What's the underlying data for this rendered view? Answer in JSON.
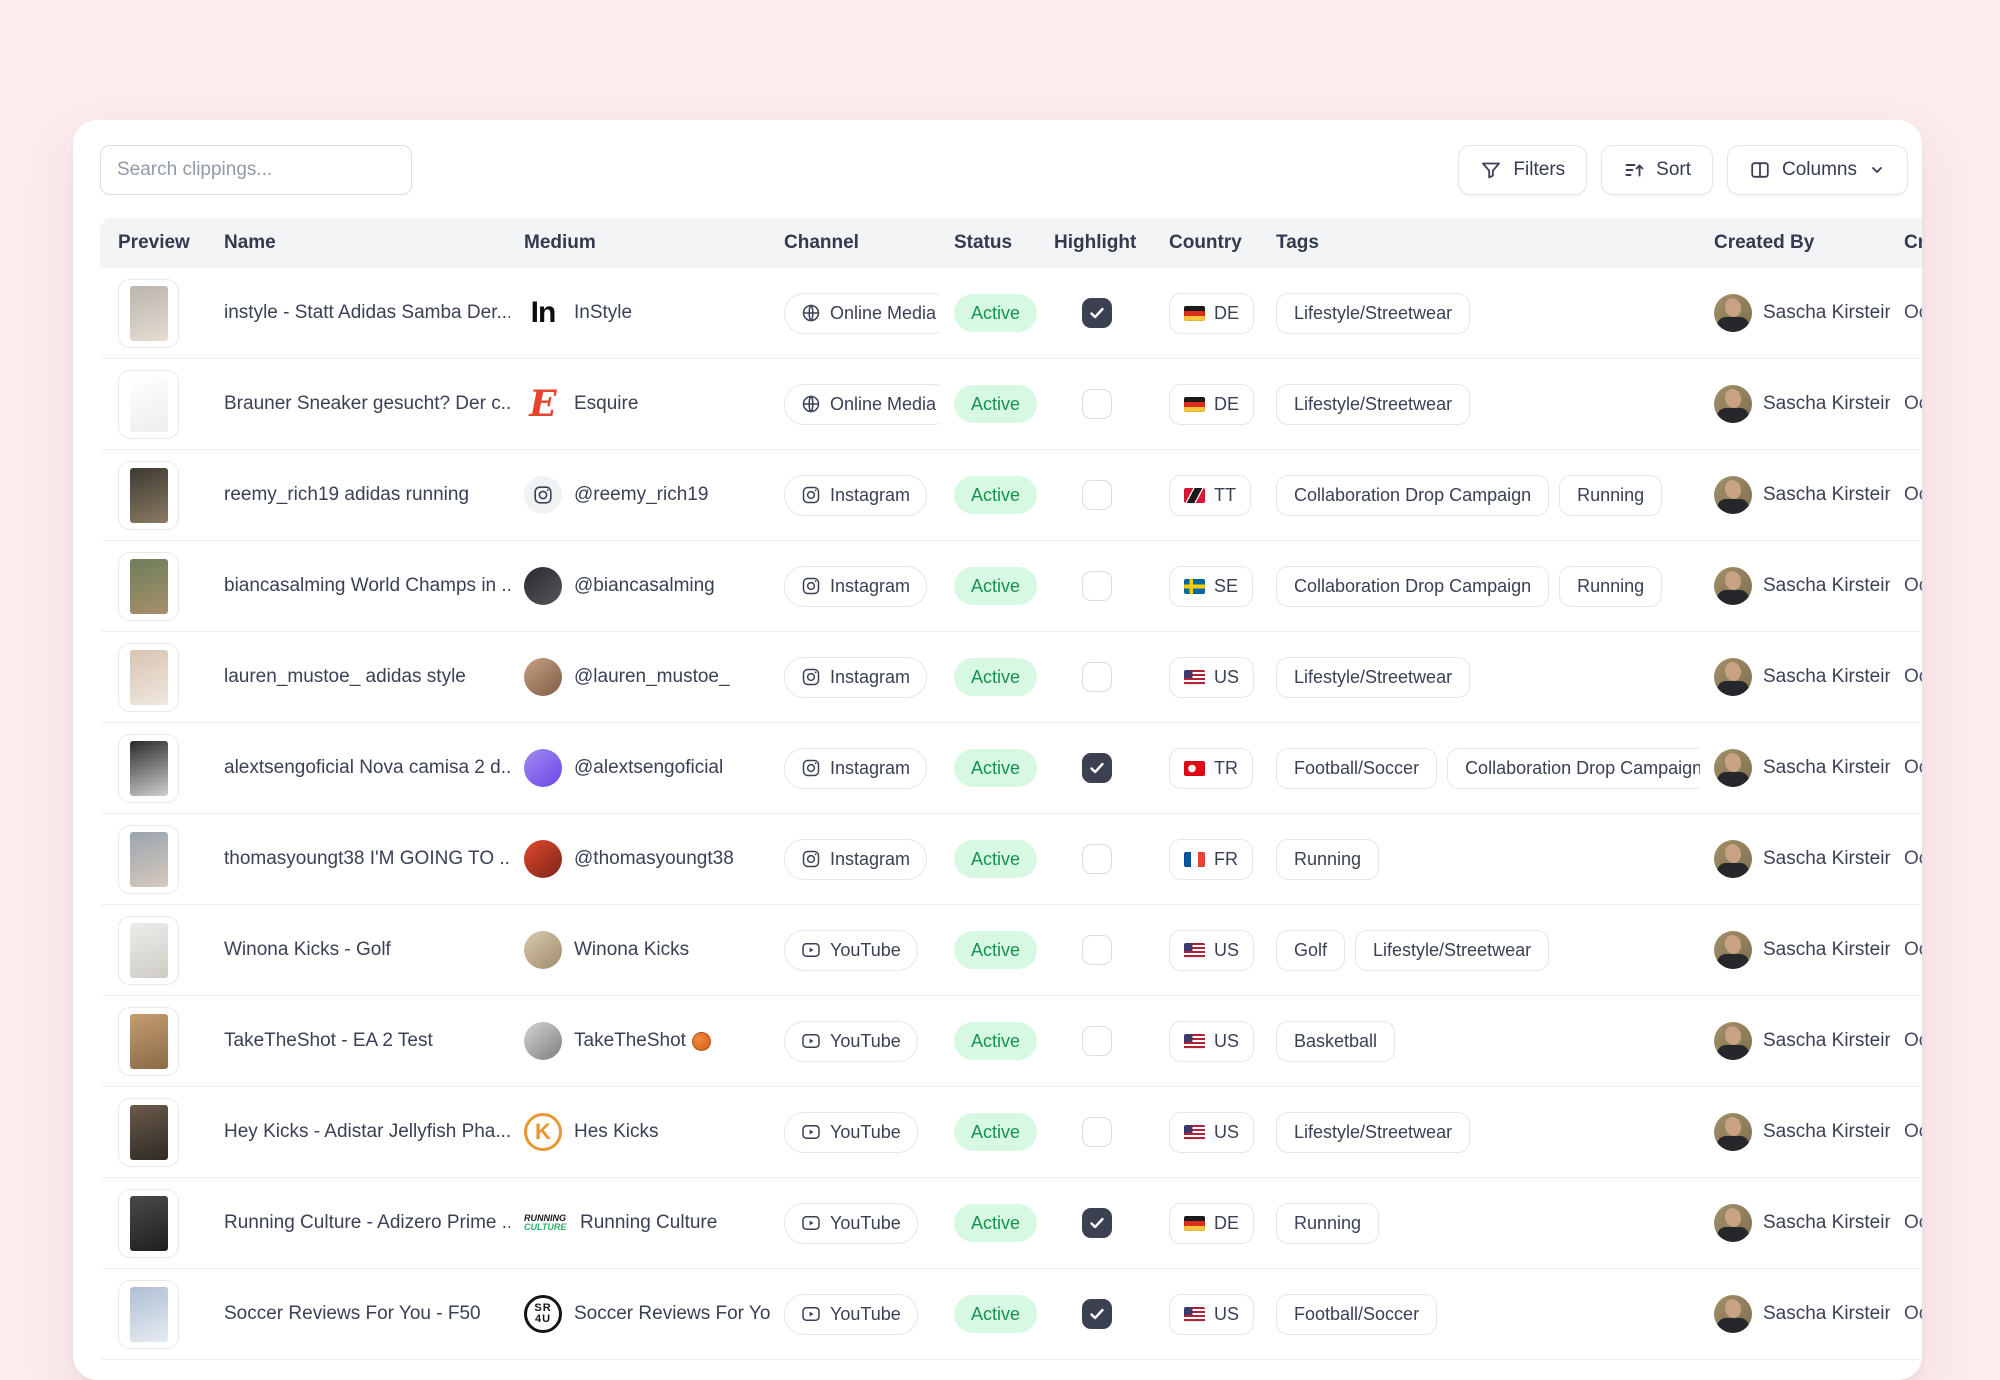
{
  "toolbar": {
    "search_placeholder": "Search clippings...",
    "filters_label": "Filters",
    "sort_label": "Sort",
    "columns_label": "Columns"
  },
  "colors": {
    "background": "#fbecee",
    "status_active_bg": "#d7f8e2",
    "status_active_text": "#15934e",
    "checkbox_checked": "#3c4152"
  },
  "table": {
    "columns": [
      {
        "key": "preview",
        "label": "Preview"
      },
      {
        "key": "name",
        "label": "Name"
      },
      {
        "key": "medium",
        "label": "Medium"
      },
      {
        "key": "channel",
        "label": "Channel"
      },
      {
        "key": "status",
        "label": "Status"
      },
      {
        "key": "highlight",
        "label": "Highlight"
      },
      {
        "key": "country",
        "label": "Country"
      },
      {
        "key": "tags",
        "label": "Tags"
      },
      {
        "key": "createdby",
        "label": "Created By"
      },
      {
        "key": "createdat",
        "label": "Cr"
      }
    ],
    "rows": [
      {
        "name": "instyle - Statt Adidas Samba Der...",
        "medium": {
          "name": "InStyle",
          "avatar": {
            "kind": "text",
            "text": "In",
            "color": "#0c0d10"
          }
        },
        "channel": {
          "label": "Online Media",
          "icon": "globe-icon"
        },
        "status": "Active",
        "highlight": true,
        "country": {
          "code": "DE"
        },
        "tags": [
          "Lifestyle/Streetwear"
        ],
        "created_by": "Sascha Kirstein",
        "created_at": "Oct",
        "thumb": [
          "#b9b4ad",
          "#e6ddd1"
        ]
      },
      {
        "name": "Brauner Sneaker gesucht? Der c...",
        "medium": {
          "name": "Esquire",
          "avatar": {
            "kind": "serif",
            "text": "E",
            "color": "#e8432e"
          }
        },
        "channel": {
          "label": "Online Media",
          "icon": "globe-icon"
        },
        "status": "Active",
        "highlight": false,
        "country": {
          "code": "DE"
        },
        "tags": [
          "Lifestyle/Streetwear"
        ],
        "created_by": "Sascha Kirstein",
        "created_at": "Oct",
        "thumb": [
          "#ffffff",
          "#ededeb"
        ]
      },
      {
        "name": "reemy_rich19 adidas running",
        "medium": {
          "name": "@reemy_rich19",
          "avatar": {
            "kind": "ig"
          }
        },
        "channel": {
          "label": "Instagram",
          "icon": "instagram-icon"
        },
        "status": "Active",
        "highlight": false,
        "country": {
          "code": "TT"
        },
        "tags": [
          "Collaboration Drop Campaign",
          "Running"
        ],
        "created_by": "Sascha Kirstein",
        "created_at": "Oct",
        "thumb": [
          "#3d3a33",
          "#8a7a62"
        ]
      },
      {
        "name": "biancasalming World Champs in ...",
        "medium": {
          "name": "@biancasalming",
          "avatar": {
            "kind": "photo",
            "colors": [
              "#2a2a2e",
              "#55555c"
            ]
          }
        },
        "channel": {
          "label": "Instagram",
          "icon": "instagram-icon"
        },
        "status": "Active",
        "highlight": false,
        "country": {
          "code": "SE"
        },
        "tags": [
          "Collaboration Drop Campaign",
          "Running"
        ],
        "created_by": "Sascha Kirstein",
        "created_at": "Oct",
        "thumb": [
          "#6c7f5a",
          "#a98f6b"
        ]
      },
      {
        "name": "lauren_mustoe_ adidas style",
        "medium": {
          "name": "@lauren_mustoe_",
          "avatar": {
            "kind": "photo",
            "colors": [
              "#c9a184",
              "#7d5b44"
            ]
          }
        },
        "channel": {
          "label": "Instagram",
          "icon": "instagram-icon"
        },
        "status": "Active",
        "highlight": false,
        "country": {
          "code": "US"
        },
        "tags": [
          "Lifestyle/Streetwear"
        ],
        "created_by": "Sascha Kirstein",
        "created_at": "Oct",
        "thumb": [
          "#d8c4b2",
          "#efe7de"
        ]
      },
      {
        "name": "alextsengoficial Nova camisa 2 d...",
        "medium": {
          "name": "@alextsengoficial",
          "avatar": {
            "kind": "photo",
            "colors": [
              "#a18bf0",
              "#6b46e5"
            ]
          }
        },
        "channel": {
          "label": "Instagram",
          "icon": "instagram-icon"
        },
        "status": "Active",
        "highlight": true,
        "country": {
          "code": "TR"
        },
        "tags": [
          "Football/Soccer",
          "Collaboration Drop Campaign"
        ],
        "created_by": "Sascha Kirstein",
        "created_at": "Oct",
        "thumb": [
          "#2b2b2e",
          "#cfcfd2"
        ]
      },
      {
        "name": "thomasyoungt38 I'M GOING TO ...",
        "medium": {
          "name": "@thomasyoungt38",
          "avatar": {
            "kind": "photo",
            "colors": [
              "#e0492f",
              "#7e2417"
            ]
          }
        },
        "channel": {
          "label": "Instagram",
          "icon": "instagram-icon"
        },
        "status": "Active",
        "highlight": false,
        "country": {
          "code": "FR"
        },
        "tags": [
          "Running"
        ],
        "created_by": "Sascha Kirstein",
        "created_at": "Oct",
        "thumb": [
          "#9aa4b0",
          "#d6cabc"
        ]
      },
      {
        "name": "Winona Kicks - Golf",
        "medium": {
          "name": "Winona Kicks",
          "avatar": {
            "kind": "photo",
            "colors": [
              "#d9cab0",
              "#a08a6a"
            ]
          }
        },
        "channel": {
          "label": "YouTube",
          "icon": "youtube-icon"
        },
        "status": "Active",
        "highlight": false,
        "country": {
          "code": "US"
        },
        "tags": [
          "Golf",
          "Lifestyle/Streetwear"
        ],
        "created_by": "Sascha Kirstein",
        "created_at": "Oct",
        "thumb": [
          "#ececea",
          "#cfccc6"
        ]
      },
      {
        "name": "TakeTheShot - EA 2 Test",
        "medium": {
          "name": "TakeTheShot",
          "suffix_icon": "basketball-icon",
          "avatar": {
            "kind": "photo",
            "colors": [
              "#d4d4d4",
              "#7e7e7e"
            ]
          }
        },
        "channel": {
          "label": "YouTube",
          "icon": "youtube-icon"
        },
        "status": "Active",
        "highlight": false,
        "country": {
          "code": "US"
        },
        "tags": [
          "Basketball"
        ],
        "created_by": "Sascha Kirstein",
        "created_at": "Oct",
        "thumb": [
          "#c59d6f",
          "#8a6a48"
        ]
      },
      {
        "name": "Hey Kicks - Adistar Jellyfish Pha...",
        "medium": {
          "name": "Hes Kicks",
          "avatar": {
            "kind": "ring",
            "text": "K",
            "color": "#e8962e"
          }
        },
        "channel": {
          "label": "YouTube",
          "icon": "youtube-icon"
        },
        "status": "Active",
        "highlight": false,
        "country": {
          "code": "US"
        },
        "tags": [
          "Lifestyle/Streetwear"
        ],
        "created_by": "Sascha Kirstein",
        "created_at": "Oct",
        "thumb": [
          "#6b5b4a",
          "#2f2a26"
        ]
      },
      {
        "name": "Running Culture - Adizero Prime ...",
        "medium": {
          "name": "Running Culture",
          "avatar": {
            "kind": "stack",
            "lines": [
              "RUNNING",
              "CULTURE"
            ],
            "colors": [
              "#17181a",
              "#2fae66"
            ]
          }
        },
        "channel": {
          "label": "YouTube",
          "icon": "youtube-icon"
        },
        "status": "Active",
        "highlight": true,
        "country": {
          "code": "DE"
        },
        "tags": [
          "Running"
        ],
        "created_by": "Sascha Kirstein",
        "created_at": "Oct",
        "thumb": [
          "#4a4a4c",
          "#1f1f21"
        ]
      },
      {
        "name": "Soccer Reviews For You - F50",
        "medium": {
          "name": "Soccer Reviews For You",
          "avatar": {
            "kind": "emblem",
            "lines": [
              "SR",
              "4U"
            ]
          }
        },
        "channel": {
          "label": "YouTube",
          "icon": "youtube-icon"
        },
        "status": "Active",
        "highlight": true,
        "country": {
          "code": "US"
        },
        "tags": [
          "Football/Soccer"
        ],
        "created_by": "Sascha Kirstein",
        "created_at": "Oct",
        "thumb": [
          "#aebfd4",
          "#e6ebf1"
        ]
      }
    ]
  }
}
